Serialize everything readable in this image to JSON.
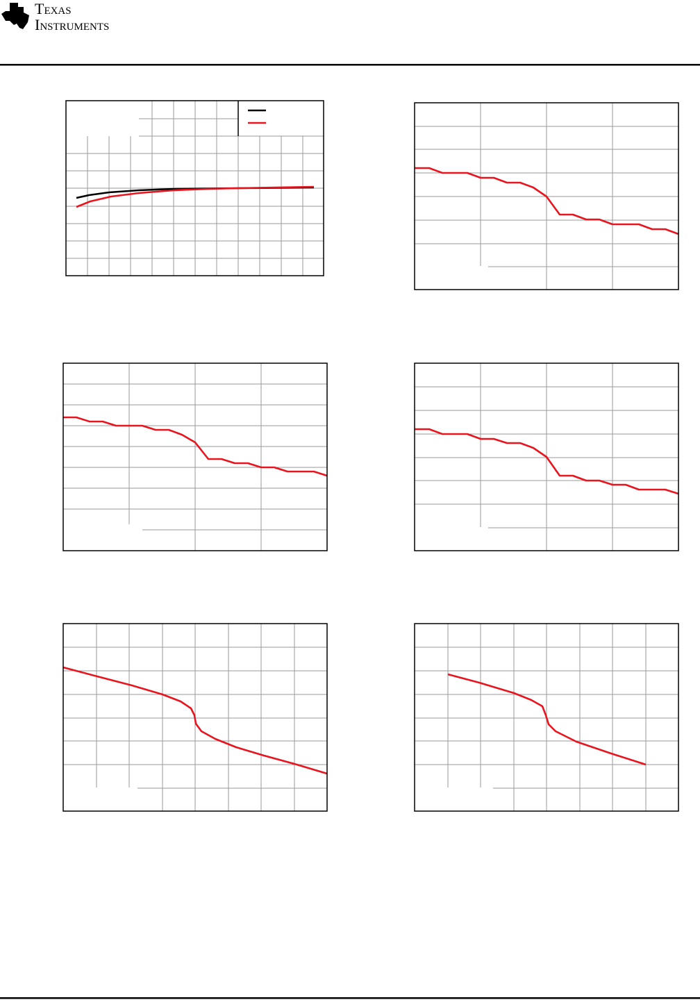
{
  "header": {
    "brand": [
      "Texas",
      "Instruments"
    ]
  }
}
